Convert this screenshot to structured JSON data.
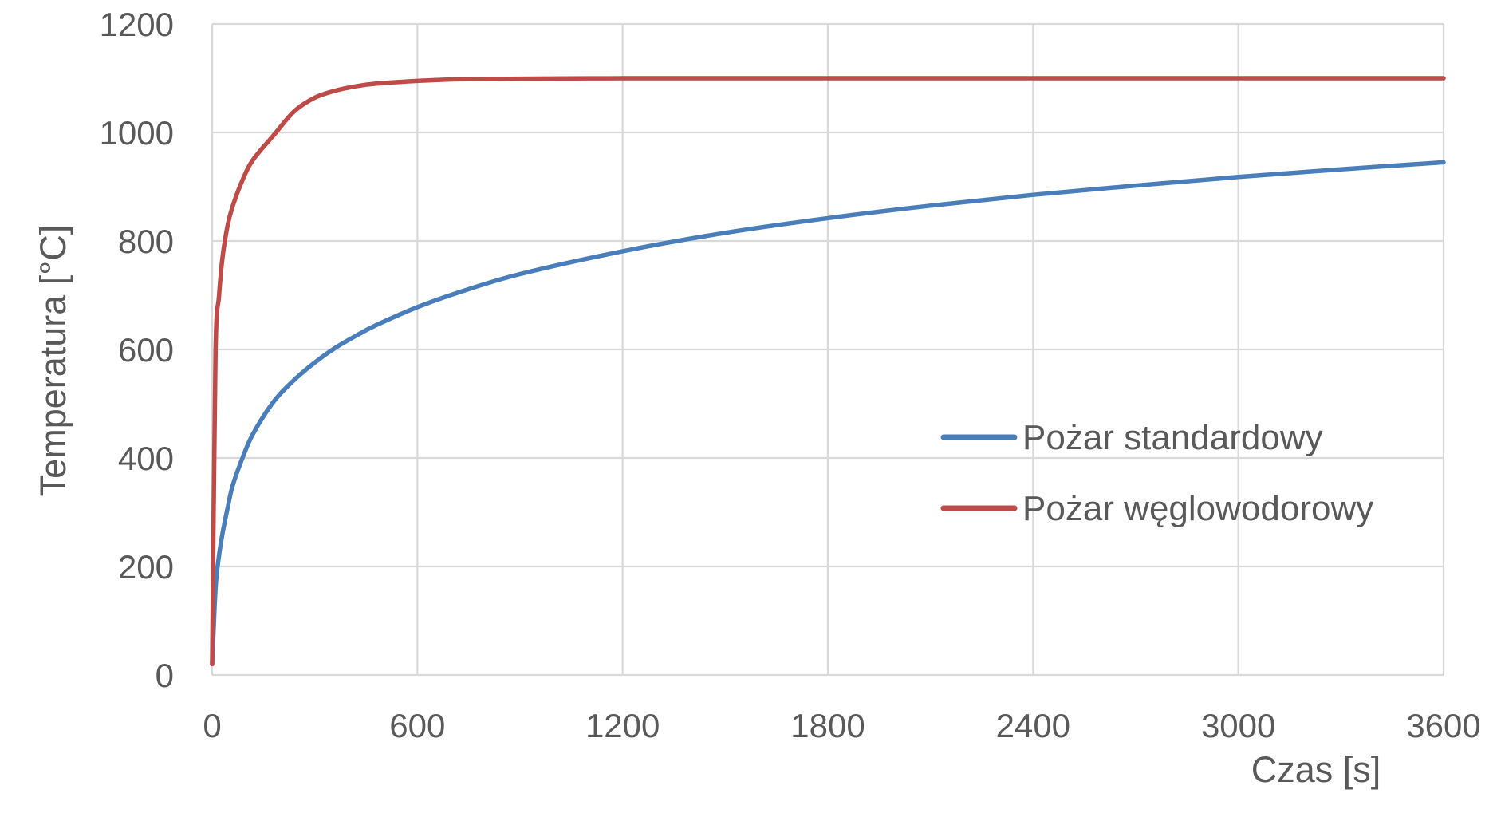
{
  "chart_data": {
    "type": "line",
    "title": "",
    "xlabel": "Czas [s]",
    "ylabel": "Temperatura [°C]",
    "xlim": [
      0,
      3600
    ],
    "ylim": [
      0,
      1200
    ],
    "x_ticks": [
      0,
      600,
      1200,
      1800,
      2400,
      3000,
      3600
    ],
    "y_ticks": [
      0,
      200,
      400,
      600,
      800,
      1000,
      1200
    ],
    "grid": true,
    "legend_position": "right-middle",
    "x": [
      0,
      10,
      20,
      30,
      45,
      60,
      90,
      120,
      180,
      240,
      300,
      360,
      420,
      480,
      600,
      720,
      900,
      1200,
      1500,
      1800,
      2100,
      2400,
      2700,
      3000,
      3300,
      3600
    ],
    "series": [
      {
        "name": "Pożar standardowy",
        "color": "#4a7ebb",
        "values": [
          20,
          160,
          220,
          260,
          307,
          349,
          402,
          445,
          504,
          544,
          576,
          603,
          625,
          645,
          678,
          705,
          739,
          781,
          815,
          842,
          865,
          885,
          902,
          918,
          932,
          945
        ]
      },
      {
        "name": "Pożar węglowodorowy",
        "color": "#be4b48",
        "values": [
          20,
          598,
          698,
          768,
          828,
          864,
          914,
          950,
          995,
          1039,
          1064,
          1077,
          1085,
          1090,
          1095,
          1098,
          1099,
          1100,
          1100,
          1100,
          1100,
          1100,
          1100,
          1100,
          1100,
          1100
        ]
      }
    ]
  }
}
